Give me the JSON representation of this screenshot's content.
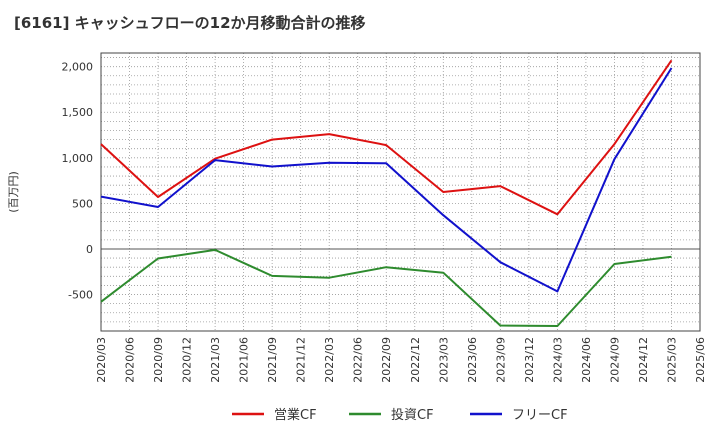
{
  "page_title": "[6161]  キャッシュフローの12か月移動合計の推移",
  "colors": {
    "operating": "#dd1111",
    "investing": "#2e8b2e",
    "free": "#1111cc",
    "grid": "#999999",
    "zero": "#555555",
    "axis_text": "#333333"
  },
  "chart_data": {
    "type": "line",
    "title": "[6161]  キャッシュフローの12か月移動合計の推移",
    "ylabel": "(百万円)",
    "xlabel": "",
    "ylim": [
      -900,
      2150
    ],
    "y_ticks": [
      2000,
      1500,
      1000,
      500,
      0,
      -500
    ],
    "y_tick_labels": [
      "2,000",
      "1,500",
      "1,000",
      "500",
      "0",
      "-500"
    ],
    "categories": [
      "2020/03",
      "2020/06",
      "2020/09",
      "2020/12",
      "2021/03",
      "2021/06",
      "2021/09",
      "2021/12",
      "2022/03",
      "2022/06",
      "2022/09",
      "2022/12",
      "2023/03",
      "2023/06",
      "2023/09",
      "2023/12",
      "2024/03",
      "2024/06",
      "2024/09",
      "2024/12",
      "2025/03",
      "2025/06"
    ],
    "grid": true,
    "legend_position": "bottom",
    "series": [
      {
        "name": "営業CF",
        "color_key": "operating",
        "points": [
          [
            "2020/03",
            1150
          ],
          [
            "2020/09",
            570
          ],
          [
            "2021/03",
            990
          ],
          [
            "2021/09",
            1200
          ],
          [
            "2022/03",
            1260
          ],
          [
            "2022/09",
            1140
          ],
          [
            "2023/03",
            625
          ],
          [
            "2023/09",
            690
          ],
          [
            "2024/03",
            380
          ],
          [
            "2024/09",
            1150
          ],
          [
            "2025/03",
            2070
          ]
        ]
      },
      {
        "name": "投資CF",
        "color_key": "investing",
        "points": [
          [
            "2020/03",
            -580
          ],
          [
            "2020/09",
            -105
          ],
          [
            "2021/03",
            -10
          ],
          [
            "2021/09",
            -295
          ],
          [
            "2022/03",
            -315
          ],
          [
            "2022/09",
            -200
          ],
          [
            "2023/03",
            -260
          ],
          [
            "2023/09",
            -840
          ],
          [
            "2024/03",
            -845
          ],
          [
            "2024/09",
            -165
          ],
          [
            "2025/03",
            -85
          ]
        ]
      },
      {
        "name": "フリーCF",
        "color_key": "free",
        "points": [
          [
            "2020/03",
            575
          ],
          [
            "2020/09",
            460
          ],
          [
            "2021/03",
            975
          ],
          [
            "2021/09",
            905
          ],
          [
            "2022/03",
            945
          ],
          [
            "2022/09",
            940
          ],
          [
            "2023/03",
            370
          ],
          [
            "2023/09",
            -145
          ],
          [
            "2024/03",
            -465
          ],
          [
            "2024/09",
            985
          ],
          [
            "2025/03",
            1985
          ]
        ]
      }
    ]
  }
}
